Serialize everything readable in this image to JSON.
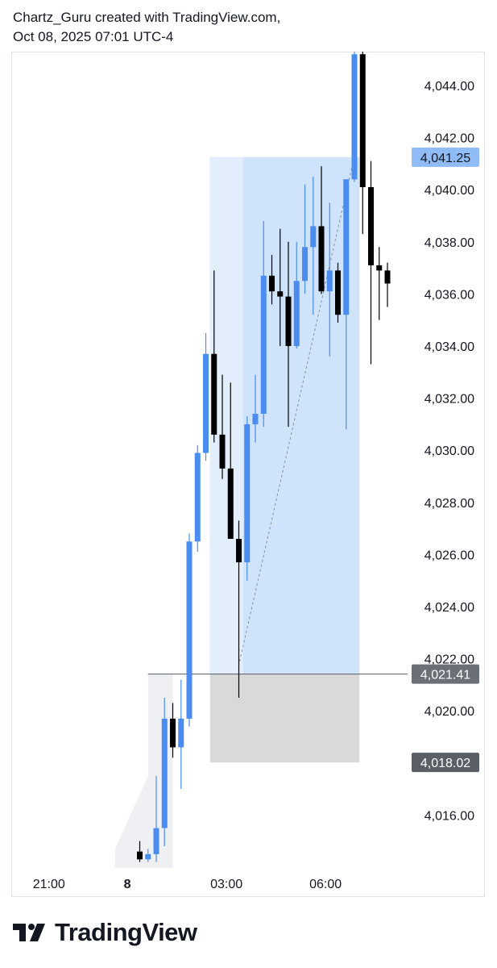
{
  "header": {
    "line1": "Chartz_Guru created with TradingView.com,",
    "line2": "Oct 08, 2025 07:01 UTC-4"
  },
  "logo": {
    "text": "TradingView",
    "icon": "tradingview-logo-icon"
  },
  "colors": {
    "up": "#4a8cf0",
    "down": "#000000",
    "profit_zone": "#cfe3fb",
    "profit_zone_light": "#e3eefc",
    "stop_zone": "#d9d9d9",
    "entry_tag": "#6b6f78",
    "target_tag": "#8fbcf7"
  },
  "chart_data": {
    "type": "candlestick",
    "title": "",
    "ylim": [
      4014.2,
      4045.3
    ],
    "y_ticks": [
      "4,044.00",
      "4,042.00",
      "4,040.00",
      "4,038.00",
      "4,036.00",
      "4,034.00",
      "4,032.00",
      "4,030.00",
      "4,028.00",
      "4,026.00",
      "4,024.00",
      "4,022.00",
      "4,020.00",
      "4,016.00"
    ],
    "y_tick_values": [
      4044,
      4042,
      4040,
      4038,
      4036,
      4034,
      4032,
      4030,
      4028,
      4026,
      4024,
      4022,
      4020,
      4016
    ],
    "x_ticks": [
      {
        "label": "21:00",
        "bar": -11
      },
      {
        "label": "8",
        "bar": -1.5
      },
      {
        "label": "03:00",
        "bar": 10.5
      },
      {
        "label": "06:00",
        "bar": 22.5
      }
    ],
    "candles": [
      {
        "o": 4014.6,
        "h": 4015.0,
        "l": 4014.2,
        "c": 4014.3
      },
      {
        "o": 4014.3,
        "h": 4014.7,
        "l": 4014.2,
        "c": 4014.5
      },
      {
        "o": 4014.5,
        "h": 4017.5,
        "l": 4014.2,
        "c": 4015.5
      },
      {
        "o": 4015.5,
        "h": 4020.5,
        "l": 4014.8,
        "c": 4019.7
      },
      {
        "o": 4019.7,
        "h": 4020.3,
        "l": 4018.2,
        "c": 4018.6
      },
      {
        "o": 4018.6,
        "h": 4021.2,
        "l": 4017.0,
        "c": 4019.7
      },
      {
        "o": 4019.7,
        "h": 4026.8,
        "l": 4019.4,
        "c": 4026.5
      },
      {
        "o": 4026.5,
        "h": 4030.2,
        "l": 4026.1,
        "c": 4029.9
      },
      {
        "o": 4029.9,
        "h": 4034.5,
        "l": 4029.6,
        "c": 4033.7
      },
      {
        "o": 4033.7,
        "h": 4036.9,
        "l": 4030.3,
        "c": 4030.6
      },
      {
        "o": 4030.6,
        "h": 4032.9,
        "l": 4028.9,
        "c": 4029.3
      },
      {
        "o": 4029.3,
        "h": 4032.6,
        "l": 4026.7,
        "c": 4026.6
      },
      {
        "o": 4026.6,
        "h": 4027.3,
        "l": 4020.5,
        "c": 4025.7
      },
      {
        "o": 4025.7,
        "h": 4031.3,
        "l": 4025.0,
        "c": 4031.0
      },
      {
        "o": 4031.0,
        "h": 4032.9,
        "l": 4030.3,
        "c": 4031.4
      },
      {
        "o": 4031.4,
        "h": 4038.8,
        "l": 4030.9,
        "c": 4036.7
      },
      {
        "o": 4036.7,
        "h": 4037.5,
        "l": 4035.6,
        "c": 4036.1
      },
      {
        "o": 4036.1,
        "h": 4038.5,
        "l": 4034.0,
        "c": 4035.9
      },
      {
        "o": 4035.9,
        "h": 4038.0,
        "l": 4030.9,
        "c": 4034.0
      },
      {
        "o": 4034.0,
        "h": 4038.0,
        "l": 4033.9,
        "c": 4036.5
      },
      {
        "o": 4036.5,
        "h": 4040.2,
        "l": 4036.0,
        "c": 4037.8
      },
      {
        "o": 4037.8,
        "h": 4040.5,
        "l": 4035.2,
        "c": 4038.6
      },
      {
        "o": 4038.6,
        "h": 4040.9,
        "l": 4036.0,
        "c": 4036.1
      },
      {
        "o": 4036.1,
        "h": 4039.5,
        "l": 4033.6,
        "c": 4036.9
      },
      {
        "o": 4036.9,
        "h": 4037.2,
        "l": 4034.9,
        "c": 4035.2
      },
      {
        "o": 4035.2,
        "h": 4040.4,
        "l": 4030.8,
        "c": 4040.4
      },
      {
        "o": 4040.4,
        "h": 4045.3,
        "l": 4040.3,
        "c": 4045.2
      },
      {
        "o": 4045.2,
        "h": 4045.3,
        "l": 4038.3,
        "c": 4040.1
      },
      {
        "o": 4040.1,
        "h": 4041.1,
        "l": 4033.3,
        "c": 4037.1
      },
      {
        "o": 4037.1,
        "h": 4037.8,
        "l": 4035.0,
        "c": 4036.9
      },
      {
        "o": 4036.9,
        "h": 4037.2,
        "l": 4035.5,
        "c": 4036.4
      }
    ],
    "position": {
      "entry": 4021.41,
      "target": 4041.25,
      "stop": 4018.02,
      "entry_label": "4,021.41",
      "target_label": "4,041.25",
      "stop_label": "4,018.02",
      "start_bar": 9,
      "end_bar": 27
    }
  }
}
